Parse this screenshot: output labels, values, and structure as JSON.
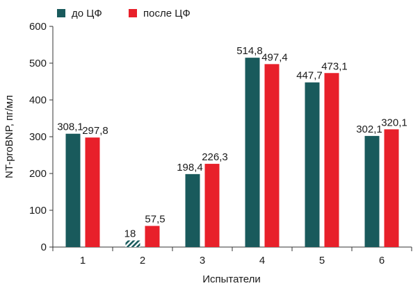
{
  "chart_data": {
    "type": "bar",
    "categories": [
      "1",
      "2",
      "3",
      "4",
      "5",
      "6"
    ],
    "series": [
      {
        "name": "до ЦФ",
        "color": "#195a5c",
        "values": [
          308.1,
          18,
          198.4,
          514.8,
          447.7,
          302.1
        ],
        "value_labels": [
          "308,1",
          "18",
          "198,4",
          "514,8",
          "447,7",
          "302,1"
        ]
      },
      {
        "name": "после ЦФ",
        "color": "#e8202a",
        "values": [
          297.8,
          57.5,
          226.3,
          497.4,
          473.1,
          320.1
        ],
        "value_labels": [
          "297,8",
          "57,5",
          "226,3",
          "497,4",
          "473,1",
          "320,1"
        ]
      }
    ],
    "hatched_bar": {
      "series": 0,
      "category": 1
    },
    "xlabel": "Испытатели",
    "ylabel": "NT-proBNP, пг/мл",
    "ylim": [
      0,
      600
    ],
    "yticks": [
      "0",
      "100",
      "200",
      "300",
      "400",
      "500",
      "600"
    ],
    "legend_position": "top-left",
    "grid": false
  }
}
